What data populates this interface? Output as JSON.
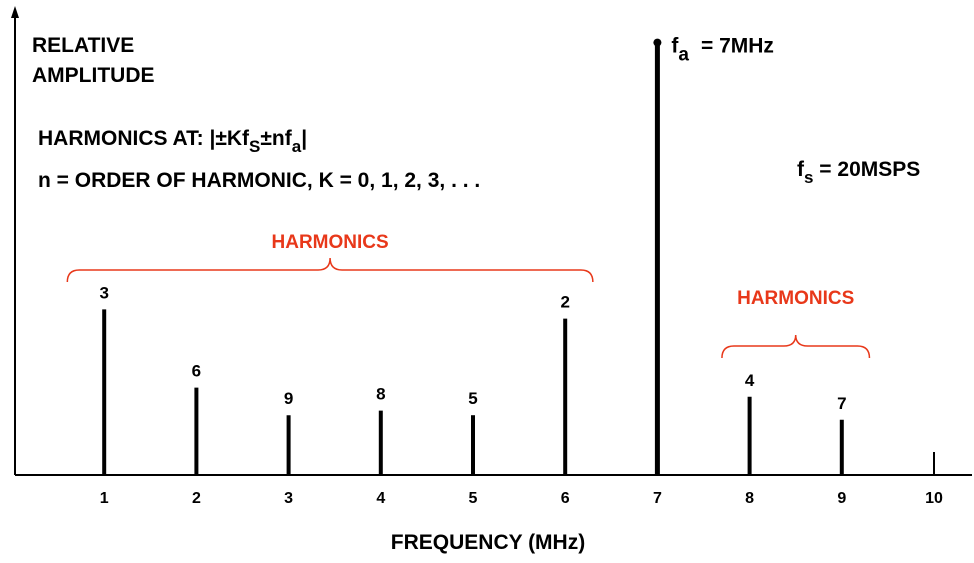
{
  "chart_data": {
    "type": "bar",
    "title": "",
    "xlabel": "FREQUENCY (MHz)",
    "ylabel": "RELATIVE AMPLITUDE",
    "ylabel_line1": "RELATIVE",
    "ylabel_line2": "AMPLITUDE",
    "xlim": [
      0,
      10.5
    ],
    "ylim": [
      0,
      1
    ],
    "grid": false,
    "x_ticks": [
      "1",
      "2",
      "3",
      "4",
      "5",
      "6",
      "7",
      "8",
      "9",
      "10"
    ],
    "fundamental": {
      "x": 7,
      "value": 0.94,
      "label": "f",
      "label_sub": "a",
      "label_rest": "= 7MHz"
    },
    "harmonics": [
      {
        "x": 1,
        "value": 0.36,
        "label": "3"
      },
      {
        "x": 2,
        "value": 0.19,
        "label": "6"
      },
      {
        "x": 3,
        "value": 0.13,
        "label": "9"
      },
      {
        "x": 4,
        "value": 0.14,
        "label": "8"
      },
      {
        "x": 5,
        "value": 0.13,
        "label": "5"
      },
      {
        "x": 6,
        "value": 0.34,
        "label": "2"
      },
      {
        "x": 8,
        "value": 0.17,
        "label": "4"
      },
      {
        "x": 9,
        "value": 0.12,
        "label": "7"
      }
    ],
    "tick_at_10_height": 0.05,
    "groups": [
      {
        "label": "HARMONICS",
        "from": 0.6,
        "to": 6.3
      },
      {
        "label": "HARMONICS",
        "from": 7.7,
        "to": 9.3
      }
    ],
    "annotations": {
      "harmonics_at_prefix": "HARMONICS AT: |±Kf",
      "harmonics_at_sub1": "S",
      "harmonics_at_mid": "±nf",
      "harmonics_at_sub2": "a",
      "harmonics_at_suffix": "|",
      "order_line": "n = ORDER OF HARMONIC, K = 0, 1, 2, 3, . . .",
      "fs_main": "f",
      "fs_sub": "s",
      "fs_rest": " = 20MSPS"
    },
    "colors": {
      "bars": "#000000",
      "harmonic_group": "#e8381a"
    }
  }
}
